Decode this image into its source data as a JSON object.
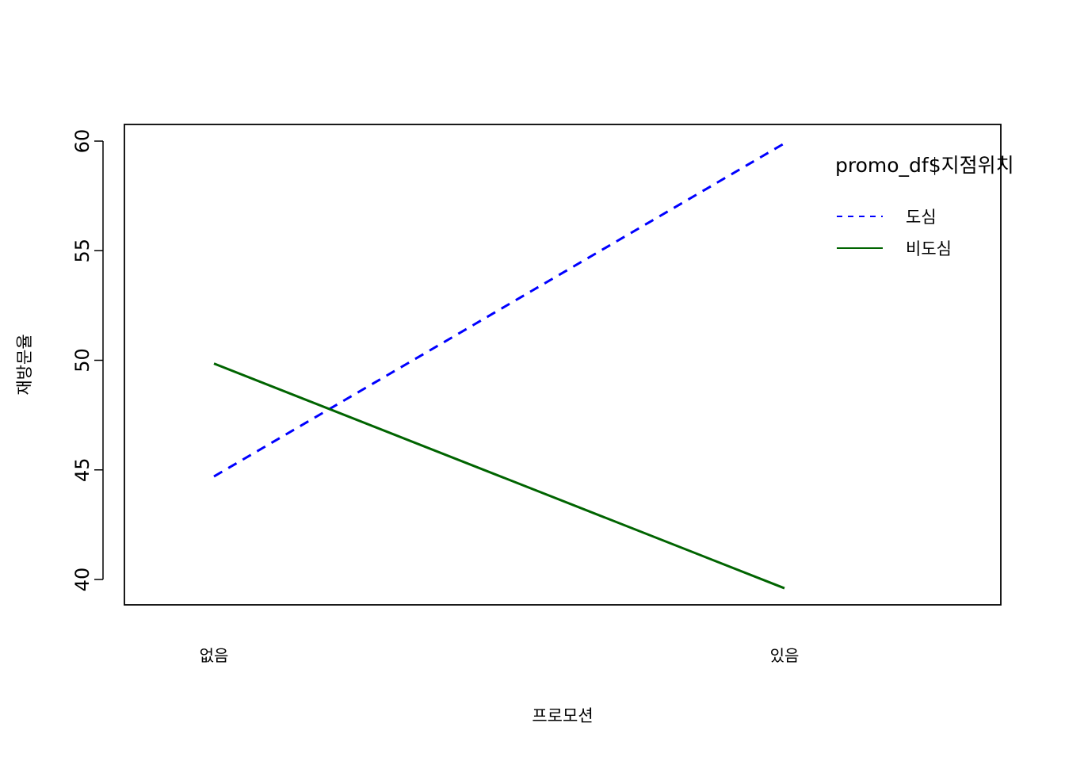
{
  "chart_data": {
    "type": "line",
    "xlabel": "프로모션",
    "ylabel": "재방문율",
    "categories": [
      "없음",
      "있음"
    ],
    "ylim": [
      39,
      61
    ],
    "yticks": [
      40,
      45,
      50,
      55,
      60
    ],
    "legend": {
      "title": "promo_df$지점위치",
      "placement": "top-right"
    },
    "series": [
      {
        "name": "도심",
        "values": [
          44.7,
          59.9
        ],
        "color": "#0000ff",
        "style": "dashed"
      },
      {
        "name": "비도심",
        "values": [
          49.85,
          39.6
        ],
        "color": "#006400",
        "style": "solid"
      }
    ],
    "grid": false
  }
}
